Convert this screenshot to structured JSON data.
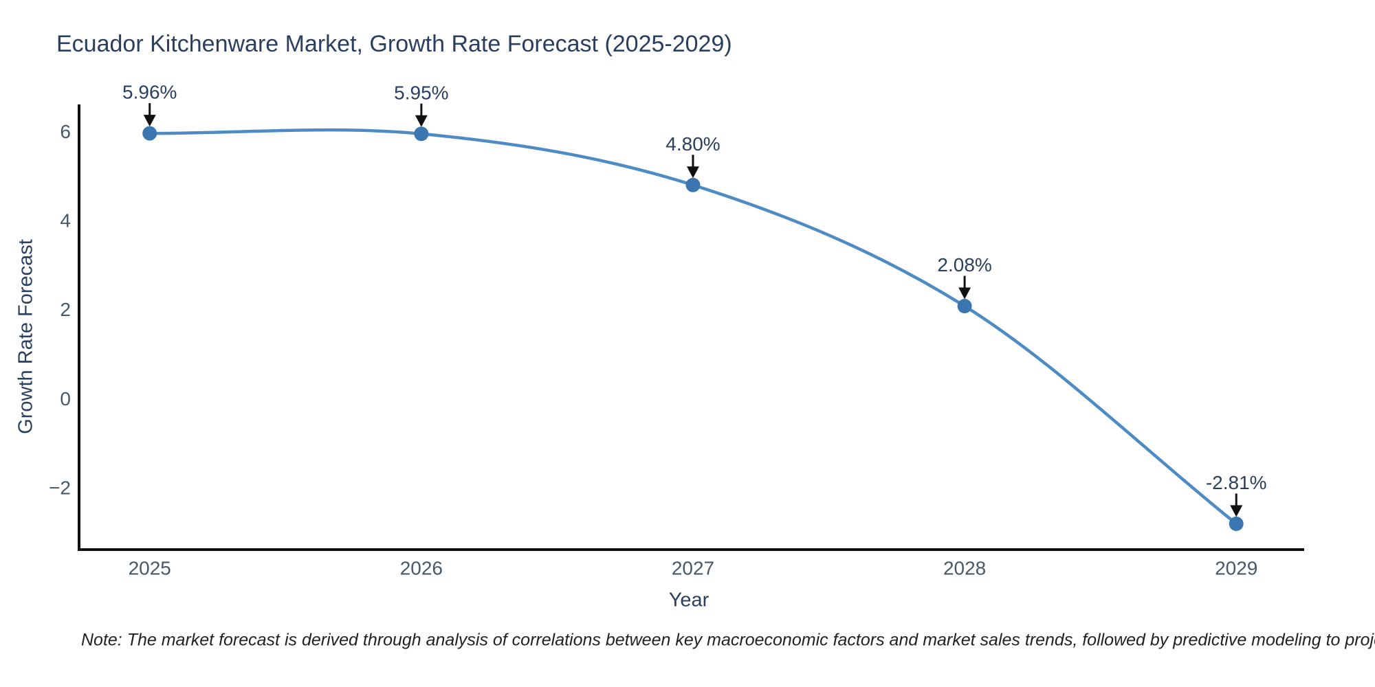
{
  "note": "Note: The market forecast is derived through analysis of correlations between key macroeconomic factors and market sales trends, followed by predictive modeling to project future sales",
  "chart_data": {
    "type": "line",
    "title": "Ecuador Kitchenware Market, Growth Rate Forecast (2025-2029)",
    "xlabel": "Year",
    "ylabel": "Growth Rate Forecast",
    "x": [
      2025,
      2026,
      2027,
      2028,
      2029
    ],
    "values": [
      5.96,
      5.95,
      4.8,
      2.08,
      -2.81
    ],
    "point_labels": [
      "5.96%",
      "5.95%",
      "4.80%",
      "2.08%",
      "-2.81%"
    ],
    "xtick_labels": [
      "2025",
      "2026",
      "2027",
      "2028",
      "2029"
    ],
    "yticks": [
      6,
      4,
      2,
      0,
      -2
    ],
    "ytick_labels": [
      "6",
      "4",
      "2",
      "0",
      "−2"
    ],
    "xlim": [
      2024.74,
      2029.25
    ],
    "ylim": [
      -3.39,
      6.61
    ],
    "grid": false,
    "legend": null,
    "curve": "spline",
    "colors": {
      "line": "#4e8bc4",
      "marker": "#3b76b0",
      "axis": "#111111",
      "title_text": "#2a3f5f",
      "tick_text": "#47586b",
      "annotation_text": "#2a3f5f",
      "arrow": "#111111",
      "note_text": "#222222"
    }
  }
}
